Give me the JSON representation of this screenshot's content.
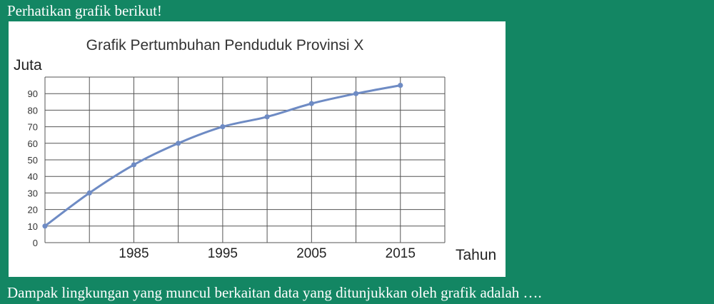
{
  "intro_text": "Perhatikan grafik berikut!",
  "question_text": "Dampak lingkungan yang muncul berkaitan data yang ditunjukkan oleh grafik adalah ….",
  "colors": {
    "background": "#138663",
    "line": "#6E8BC4",
    "grid": "#555555"
  },
  "chart_data": {
    "type": "line",
    "title": "Grafik Pertumbuhan Penduduk Provinsi X",
    "ylabel": "Juta",
    "xlabel": "Tahun",
    "xlim": [
      1975,
      2020
    ],
    "ylim": [
      0,
      100
    ],
    "x_ticks": [
      1985,
      1995,
      2005,
      2015
    ],
    "y_ticks": [
      0,
      10,
      20,
      30,
      40,
      50,
      60,
      70,
      80,
      90
    ],
    "grid": true,
    "series": [
      {
        "x": [
          1975,
          1980,
          1985,
          1990,
          1995,
          2000,
          2005,
          2010,
          2015
        ],
        "y": [
          10,
          30,
          47,
          60,
          70,
          76,
          84,
          90,
          95
        ]
      }
    ]
  }
}
